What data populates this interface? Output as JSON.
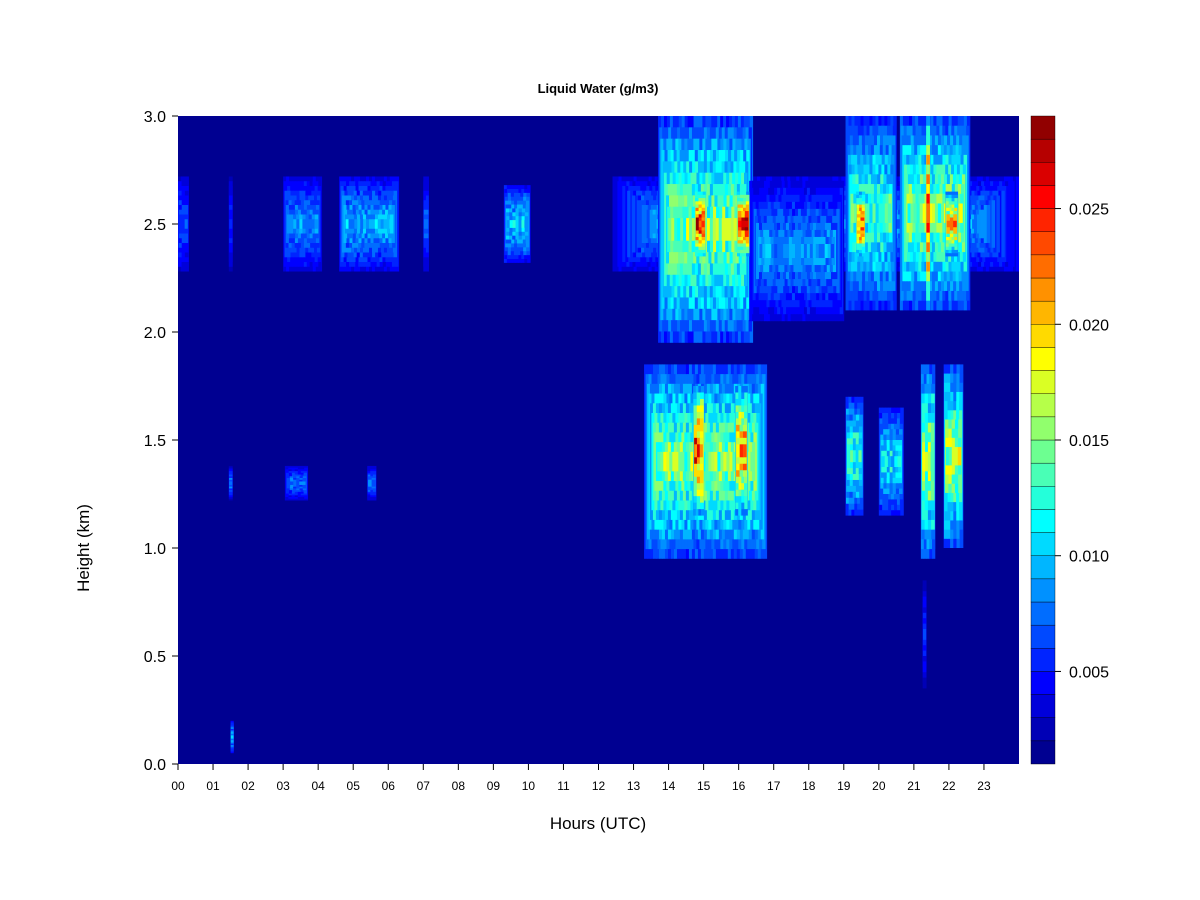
{
  "chart_data": {
    "type": "heatmap",
    "title": "Liquid Water (g/m3)",
    "xlabel": "Hours (UTC)",
    "ylabel": "Height (km)",
    "xlim": [
      0,
      24
    ],
    "ylim": [
      0,
      3
    ],
    "x_ticks": [
      {
        "value": 0,
        "label": "00"
      },
      {
        "value": 1,
        "label": "01"
      },
      {
        "value": 2,
        "label": "02"
      },
      {
        "value": 3,
        "label": "03"
      },
      {
        "value": 4,
        "label": "04"
      },
      {
        "value": 5,
        "label": "05"
      },
      {
        "value": 6,
        "label": "06"
      },
      {
        "value": 7,
        "label": "07"
      },
      {
        "value": 8,
        "label": "08"
      },
      {
        "value": 9,
        "label": "09"
      },
      {
        "value": 10,
        "label": "10"
      },
      {
        "value": 11,
        "label": "11"
      },
      {
        "value": 12,
        "label": "12"
      },
      {
        "value": 13,
        "label": "13"
      },
      {
        "value": 14,
        "label": "14"
      },
      {
        "value": 15,
        "label": "15"
      },
      {
        "value": 16,
        "label": "16"
      },
      {
        "value": 17,
        "label": "17"
      },
      {
        "value": 18,
        "label": "18"
      },
      {
        "value": 19,
        "label": "19"
      },
      {
        "value": 20,
        "label": "20"
      },
      {
        "value": 21,
        "label": "21"
      },
      {
        "value": 22,
        "label": "22"
      },
      {
        "value": 23,
        "label": "23"
      }
    ],
    "y_ticks": [
      {
        "value": 0.0,
        "label": "0.0"
      },
      {
        "value": 0.5,
        "label": "0.5"
      },
      {
        "value": 1.0,
        "label": "1.0"
      },
      {
        "value": 1.5,
        "label": "1.5"
      },
      {
        "value": 2.0,
        "label": "2.0"
      },
      {
        "value": 2.5,
        "label": "2.5"
      },
      {
        "value": 3.0,
        "label": "3.0"
      }
    ],
    "colorbar": {
      "range": [
        0.001,
        0.029
      ],
      "levels": 28,
      "ticks": [
        {
          "value": 0.005,
          "label": "0.005"
        },
        {
          "value": 0.01,
          "label": "0.010"
        },
        {
          "value": 0.015,
          "label": "0.015"
        },
        {
          "value": 0.02,
          "label": "0.020"
        },
        {
          "value": 0.025,
          "label": "0.025"
        }
      ],
      "colors": [
        "#00007f",
        "#0000ff",
        "#007fff",
        "#00ffff",
        "#7fff7f",
        "#ffff00",
        "#ff7f00",
        "#ff0000",
        "#7f0000"
      ]
    },
    "background_value": 0.001,
    "cloud_regions": [
      {
        "x": [
          0.0,
          0.3
        ],
        "y": [
          2.28,
          2.72
        ],
        "peak": 0.007
      },
      {
        "x": [
          1.45,
          1.55
        ],
        "y": [
          2.28,
          2.72
        ],
        "peak": 0.006
      },
      {
        "x": [
          1.45,
          1.55
        ],
        "y": [
          1.22,
          1.38
        ],
        "peak": 0.008
      },
      {
        "x": [
          1.5,
          1.58
        ],
        "y": [
          0.05,
          0.2
        ],
        "peak": 0.01
      },
      {
        "x": [
          3.0,
          4.1
        ],
        "y": [
          2.28,
          2.72
        ],
        "peak": 0.009
      },
      {
        "x": [
          3.05,
          3.7
        ],
        "y": [
          1.22,
          1.38
        ],
        "peak": 0.008
      },
      {
        "x": [
          4.6,
          6.3
        ],
        "y": [
          2.28,
          2.72
        ],
        "peak": 0.01
      },
      {
        "x": [
          5.4,
          5.65
        ],
        "y": [
          1.22,
          1.38
        ],
        "peak": 0.008
      },
      {
        "x": [
          7.0,
          7.15
        ],
        "y": [
          2.28,
          2.72
        ],
        "peak": 0.007
      },
      {
        "x": [
          9.3,
          10.05
        ],
        "y": [
          2.32,
          2.68
        ],
        "peak": 0.011
      },
      {
        "x": [
          12.4,
          24.0
        ],
        "y": [
          2.28,
          2.72
        ],
        "peak": 0.009
      },
      {
        "x": [
          13.7,
          16.4
        ],
        "y": [
          2.3,
          2.7
        ],
        "peak": 0.022
      },
      {
        "x": [
          13.7,
          16.4
        ],
        "y": [
          1.95,
          3.0
        ],
        "peak": 0.016
      },
      {
        "x": [
          16.3,
          19.0
        ],
        "y": [
          2.05,
          2.7
        ],
        "peak": 0.009
      },
      {
        "x": [
          14.75,
          15.05
        ],
        "y": [
          2.35,
          2.65
        ],
        "peak": 0.027
      },
      {
        "x": [
          15.95,
          16.3
        ],
        "y": [
          2.35,
          2.65
        ],
        "peak": 0.028
      },
      {
        "x": [
          13.3,
          16.8
        ],
        "y": [
          0.95,
          1.85
        ],
        "peak": 0.016
      },
      {
        "x": [
          14.7,
          15.0
        ],
        "y": [
          1.15,
          1.75
        ],
        "peak": 0.026
      },
      {
        "x": [
          15.9,
          16.25
        ],
        "y": [
          1.15,
          1.75
        ],
        "peak": 0.024
      },
      {
        "x": [
          19.05,
          20.5
        ],
        "y": [
          2.1,
          3.0
        ],
        "peak": 0.014
      },
      {
        "x": [
          19.35,
          19.6
        ],
        "y": [
          2.35,
          2.65
        ],
        "peak": 0.026
      },
      {
        "x": [
          20.6,
          22.6
        ],
        "y": [
          2.1,
          3.0
        ],
        "peak": 0.016
      },
      {
        "x": [
          21.35,
          21.45
        ],
        "y": [
          2.1,
          3.0
        ],
        "peak": 0.028
      },
      {
        "x": [
          21.9,
          22.25
        ],
        "y": [
          2.35,
          2.65
        ],
        "peak": 0.022
      },
      {
        "x": [
          19.05,
          19.55
        ],
        "y": [
          1.15,
          1.7
        ],
        "peak": 0.014
      },
      {
        "x": [
          20.0,
          20.7
        ],
        "y": [
          1.15,
          1.65
        ],
        "peak": 0.012
      },
      {
        "x": [
          21.2,
          21.6
        ],
        "y": [
          0.95,
          1.85
        ],
        "peak": 0.017
      },
      {
        "x": [
          21.85,
          22.4
        ],
        "y": [
          1.0,
          1.85
        ],
        "peak": 0.017
      },
      {
        "x": [
          21.25,
          21.35
        ],
        "y": [
          0.35,
          0.85
        ],
        "peak": 0.006
      }
    ]
  }
}
